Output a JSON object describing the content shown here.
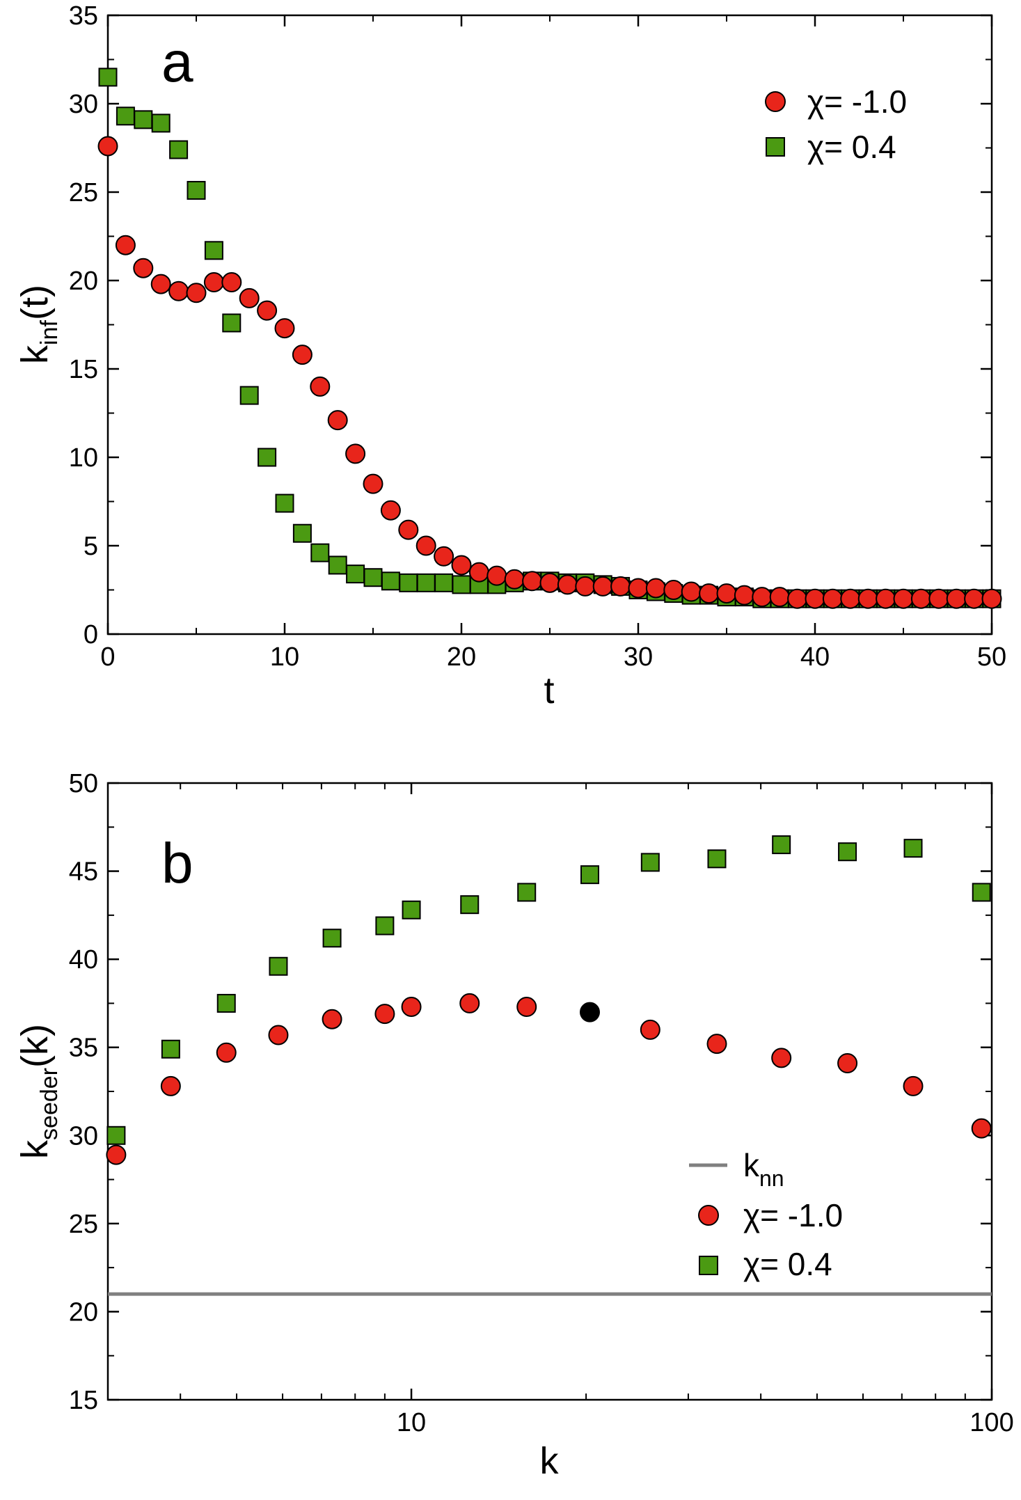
{
  "chart_data": [
    {
      "type": "scatter",
      "panel_label": "a",
      "xlabel": "t",
      "ylabel_main": "k",
      "ylabel_sub": "inf",
      "ylabel_suffix": "(t)",
      "xscale": "linear",
      "xlim": [
        0,
        50
      ],
      "ylim": [
        0,
        35
      ],
      "xticks": [
        0,
        10,
        20,
        30,
        40,
        50
      ],
      "xtick_labels": [
        "0",
        "10",
        "20",
        "30",
        "40",
        "50"
      ],
      "yticks": [
        0,
        5,
        10,
        15,
        20,
        25,
        30,
        35
      ],
      "ytick_labels": [
        "0",
        "5",
        "10",
        "15",
        "20",
        "25",
        "30",
        "35"
      ],
      "legend_position": "top-right",
      "series": [
        {
          "name": "χ= -1.0",
          "marker": "circle",
          "color": "#e8251b",
          "x": [
            0,
            1,
            2,
            3,
            4,
            5,
            6,
            7,
            8,
            9,
            10,
            11,
            12,
            13,
            14,
            15,
            16,
            17,
            18,
            19,
            20,
            21,
            22,
            23,
            24,
            25,
            26,
            27,
            28,
            29,
            30,
            31,
            32,
            33,
            34,
            35,
            36,
            37,
            38,
            39,
            40,
            41,
            42,
            43,
            44,
            45,
            46,
            47,
            48,
            49,
            50
          ],
          "y": [
            27.6,
            22.0,
            20.7,
            19.8,
            19.4,
            19.3,
            19.9,
            19.9,
            19.0,
            18.3,
            17.3,
            15.8,
            14.0,
            12.1,
            10.2,
            8.5,
            7.0,
            5.9,
            5.0,
            4.4,
            3.9,
            3.5,
            3.3,
            3.1,
            3.0,
            2.9,
            2.8,
            2.7,
            2.7,
            2.7,
            2.6,
            2.6,
            2.5,
            2.4,
            2.3,
            2.3,
            2.2,
            2.1,
            2.1,
            2.0,
            2.0,
            2.0,
            2.0,
            2.0,
            2.0,
            2.0,
            2.0,
            2.0,
            2.0,
            2.0,
            2.0
          ]
        },
        {
          "name": "χ= 0.4",
          "marker": "square",
          "color": "#4b9a12",
          "x": [
            0,
            1,
            2,
            3,
            4,
            5,
            6,
            7,
            8,
            9,
            10,
            11,
            12,
            13,
            14,
            15,
            16,
            17,
            18,
            19,
            20,
            21,
            22,
            23,
            24,
            25,
            26,
            27,
            28,
            29,
            30,
            31,
            32,
            33,
            34,
            35,
            36,
            37,
            38,
            39,
            40,
            41,
            42,
            43,
            44,
            45,
            46,
            47,
            48,
            49,
            50
          ],
          "y": [
            31.5,
            29.3,
            29.1,
            28.9,
            27.4,
            25.1,
            21.7,
            17.6,
            13.5,
            10.0,
            7.4,
            5.7,
            4.6,
            3.9,
            3.4,
            3.2,
            3.0,
            2.9,
            2.9,
            2.9,
            2.8,
            2.8,
            2.8,
            2.9,
            3.0,
            3.0,
            2.9,
            2.9,
            2.8,
            2.7,
            2.5,
            2.4,
            2.3,
            2.2,
            2.2,
            2.1,
            2.1,
            2.0,
            2.0,
            2.0,
            2.0,
            2.0,
            2.0,
            2.0,
            2.0,
            2.0,
            2.0,
            2.0,
            2.0,
            2.0,
            2.0
          ]
        }
      ]
    },
    {
      "type": "scatter",
      "panel_label": "b",
      "xlabel": "k",
      "ylabel_main": "k",
      "ylabel_sub": "seeder",
      "ylabel_suffix": "(k)",
      "xscale": "log",
      "xlim": [
        3,
        100
      ],
      "ylim": [
        15,
        50
      ],
      "xticks": [
        10,
        100
      ],
      "xtick_labels": [
        "10",
        "100"
      ],
      "minor_xticks": [
        3,
        4,
        5,
        6,
        7,
        8,
        9,
        20,
        30,
        40,
        50,
        60,
        70,
        80,
        90
      ],
      "yticks": [
        15,
        20,
        25,
        30,
        35,
        40,
        45,
        50
      ],
      "ytick_labels": [
        "15",
        "20",
        "25",
        "30",
        "35",
        "40",
        "45",
        "50"
      ],
      "legend_position": "bottom-right",
      "reference_line": {
        "name_main": "k",
        "name_sub": "nn",
        "y": 21,
        "color": "#808080"
      },
      "series": [
        {
          "name": "χ= -1.0",
          "marker": "circle",
          "color": "#e8251b",
          "x": [
            3.1,
            3.85,
            4.8,
            5.9,
            7.3,
            9.0,
            10.0,
            12.6,
            15.8,
            20.3,
            25.8,
            33.6,
            43.4,
            56.4,
            73.2,
            96.0
          ],
          "y": [
            28.9,
            32.8,
            34.7,
            35.7,
            36.6,
            36.9,
            37.3,
            37.5,
            37.3,
            37.0,
            36.0,
            35.2,
            34.4,
            34.1,
            32.8,
            30.4
          ],
          "highlight_index": 9,
          "highlight_color": "#000000"
        },
        {
          "name": "χ= 0.4",
          "marker": "square",
          "color": "#4b9a12",
          "x": [
            3.1,
            3.85,
            4.8,
            5.9,
            7.3,
            9.0,
            10.0,
            12.6,
            15.8,
            20.3,
            25.8,
            33.6,
            43.4,
            56.4,
            73.2,
            96.0
          ],
          "y": [
            30.0,
            34.9,
            37.5,
            39.6,
            41.2,
            41.9,
            42.8,
            43.1,
            43.8,
            44.8,
            45.5,
            45.7,
            46.5,
            46.1,
            46.3,
            43.8
          ]
        }
      ]
    }
  ]
}
